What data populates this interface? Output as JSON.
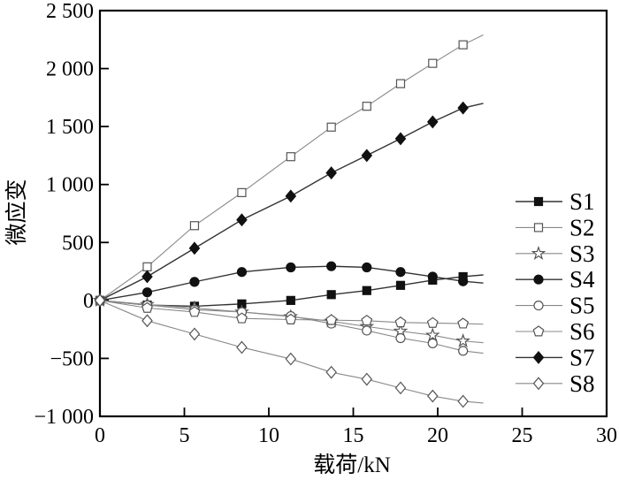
{
  "figure": {
    "background": "#ffffff"
  },
  "axes": {
    "xlabel": "载荷/kN",
    "ylabel": "微应变"
  },
  "legend": {
    "entries": [
      "S1",
      "S2",
      "S3",
      "S4",
      "S5",
      "S6",
      "S7",
      "S8"
    ]
  },
  "chart_data": {
    "type": "line",
    "title": "",
    "xlabel": "载荷/kN",
    "ylabel": "微应变",
    "xlim": [
      0,
      30
    ],
    "ylim": [
      -1000,
      2500
    ],
    "grid": false,
    "legend_position": "right-middle",
    "x_ticks": [
      0,
      5,
      10,
      15,
      20,
      25,
      30
    ],
    "x_tick_labels": [
      "0",
      "5",
      "10",
      "15",
      "20",
      "25",
      "30"
    ],
    "y_ticks": [
      2500,
      2000,
      1500,
      1000,
      500,
      0,
      -500,
      -1000
    ],
    "y_tick_labels": [
      "2 500",
      "2 000",
      "1 500",
      "1 000",
      "500",
      "0",
      "−500",
      "−1 000"
    ],
    "x": [
      0,
      2.8,
      5.6,
      8.4,
      11.3,
      13.7,
      15.8,
      17.8,
      19.7,
      21.5
    ],
    "line_extend_x": 22.7,
    "series": [
      {
        "name": "S1",
        "marker": "square",
        "fill": "filled",
        "values": [
          0,
          -40,
          -50,
          -30,
          0,
          50,
          85,
          130,
          175,
          205
        ],
        "extend_value": 220
      },
      {
        "name": "S2",
        "marker": "square",
        "fill": "open",
        "values": [
          0,
          290,
          645,
          930,
          1240,
          1495,
          1675,
          1870,
          2045,
          2205
        ],
        "extend_value": 2290
      },
      {
        "name": "S3",
        "marker": "star",
        "fill": "open",
        "values": [
          0,
          -35,
          -65,
          -100,
          -140,
          -180,
          -225,
          -265,
          -300,
          -350
        ],
        "extend_value": -365
      },
      {
        "name": "S4",
        "marker": "circle",
        "fill": "filled",
        "values": [
          0,
          70,
          160,
          245,
          285,
          295,
          285,
          245,
          205,
          165
        ],
        "extend_value": 150
      },
      {
        "name": "S5",
        "marker": "circle",
        "fill": "open",
        "values": [
          0,
          -40,
          -80,
          -100,
          -135,
          -200,
          -260,
          -325,
          -370,
          -435
        ],
        "extend_value": -455
      },
      {
        "name": "S6",
        "marker": "pentagon",
        "fill": "open",
        "values": [
          0,
          -65,
          -100,
          -155,
          -165,
          -170,
          -175,
          -190,
          -195,
          -200
        ],
        "extend_value": -205
      },
      {
        "name": "S7",
        "marker": "diamond",
        "fill": "filled",
        "values": [
          0,
          205,
          450,
          695,
          900,
          1100,
          1250,
          1395,
          1540,
          1660
        ],
        "extend_value": 1700
      },
      {
        "name": "S8",
        "marker": "diamond",
        "fill": "open",
        "values": [
          0,
          -175,
          -290,
          -405,
          -505,
          -620,
          -680,
          -755,
          -825,
          -870
        ],
        "extend_value": -885
      }
    ],
    "colors": {
      "axis": "#000000",
      "filled_series_line": "#333333",
      "open_series_line": "#888888",
      "marker_fill": "#111111",
      "marker_stroke": "#555555",
      "marker_open_fill": "#ffffff",
      "text": "#000000"
    }
  }
}
